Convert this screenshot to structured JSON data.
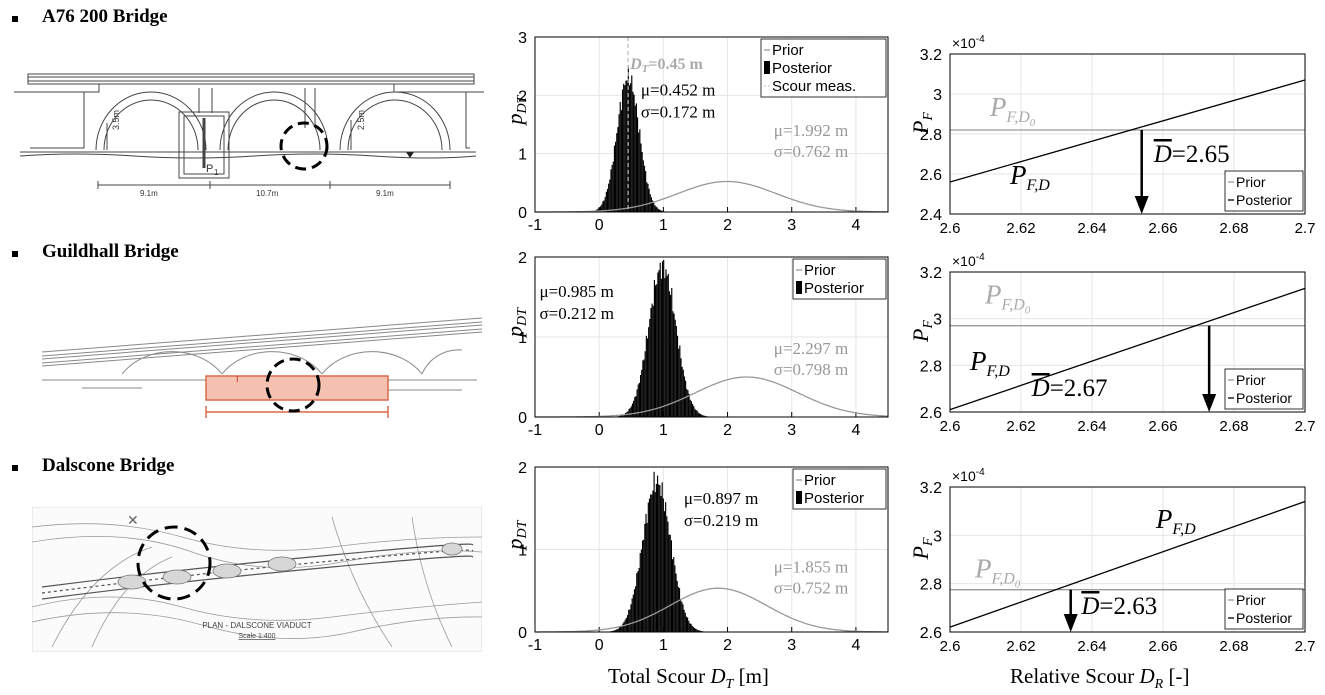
{
  "bridges": [
    {
      "title": "A76 200 Bridge"
    },
    {
      "title": "Guildhall Bridge"
    },
    {
      "title": "Dalscone Bridge"
    }
  ],
  "drawings": {
    "a76": {
      "labels": [
        "3.5m",
        "2.5m",
        "P",
        "1",
        "9.1m",
        "10.7m",
        "9.1m"
      ]
    },
    "dalscone": {
      "caption": "PLAN - DALSCONE VIADUCT",
      "scale": "Scale 1:400"
    }
  },
  "figure": {
    "xlabel_left_prefix": "Total Scour ",
    "xlabel_left_sym": "D",
    "xlabel_left_sub": "T",
    "xlabel_left_suffix": " [m]",
    "xlabel_right_prefix": "Relative Scour ",
    "xlabel_right_sym": "D",
    "xlabel_right_sub": "R",
    "xlabel_right_suffix": " [-]"
  },
  "colors": {
    "prior": "#999999",
    "posterior": "#000000",
    "grid": "#e6e6e6"
  },
  "chart_data": [
    {
      "type": "bar",
      "bridge": "A76 200 Bridge",
      "ylabel": "p",
      "ylabel_sub": "DT",
      "xlim": [
        -1,
        4.5
      ],
      "ylim": [
        0,
        3
      ],
      "xticks": [
        "-1",
        "0",
        "1",
        "2",
        "3",
        "4"
      ],
      "yticks": [
        "0",
        "1",
        "2",
        "3"
      ],
      "legend": [
        "Prior",
        "Posterior",
        "Scour meas."
      ],
      "legend_position": "top-right",
      "posterior": {
        "mean": 0.452,
        "std": 0.172,
        "label1": "μ=0.452 m",
        "label2": "σ=0.172 m"
      },
      "prior": {
        "mean": 1.992,
        "std": 0.762,
        "label1": "μ=1.992 m",
        "label2": "σ=0.762 m"
      },
      "scour_measurement": {
        "value": 0.45,
        "label": "D",
        "label_sub": "T",
        "label_rest": "=0.45 m"
      }
    },
    {
      "type": "line",
      "bridge": "A76 200 Bridge",
      "ylabel": "P",
      "ylabel_sub": "F",
      "exponent": "×10",
      "exponent_power": "-4",
      "xlim": [
        2.6,
        2.7
      ],
      "ylim": [
        2.4,
        3.2
      ],
      "xticks": [
        "2.6",
        "2.62",
        "2.64",
        "2.66",
        "2.68",
        "2.7"
      ],
      "yticks": [
        "2.4",
        "2.6",
        "2.8",
        "3",
        "3.2"
      ],
      "prior_value": 2.82,
      "posterior_line": {
        "x": [
          2.6,
          2.7
        ],
        "y": [
          2.56,
          3.07
        ]
      },
      "arrow_x": 2.654,
      "d_label": "=2.65",
      "prior_label": "P",
      "prior_label_sub": "F,D",
      "prior_label_subsub": "0",
      "post_label": "P",
      "post_label_sub": "F,D",
      "legend": [
        "Prior",
        "Posterior"
      ],
      "legend_position": "bottom-right"
    },
    {
      "type": "bar",
      "bridge": "Guildhall Bridge",
      "ylabel": "p",
      "ylabel_sub": "DT",
      "xlim": [
        -1,
        4.5
      ],
      "ylim": [
        0,
        2
      ],
      "xticks": [
        "-1",
        "0",
        "1",
        "2",
        "3",
        "4"
      ],
      "yticks": [
        "0",
        "1",
        "2"
      ],
      "legend": [
        "Prior",
        "Posterior"
      ],
      "legend_position": "top-right",
      "posterior": {
        "mean": 0.985,
        "std": 0.212,
        "label1": "μ=0.985 m",
        "label2": "σ=0.212 m"
      },
      "prior": {
        "mean": 2.297,
        "std": 0.798,
        "label1": "μ=2.297 m",
        "label2": "σ=0.798 m"
      }
    },
    {
      "type": "line",
      "bridge": "Guildhall Bridge",
      "ylabel": "P",
      "ylabel_sub": "F",
      "exponent": "×10",
      "exponent_power": "-4",
      "xlim": [
        2.6,
        2.7
      ],
      "ylim": [
        2.6,
        3.2
      ],
      "xticks": [
        "2.6",
        "2.62",
        "2.64",
        "2.66",
        "2.68",
        "2.7"
      ],
      "yticks": [
        "2.6",
        "2.8",
        "3",
        "3.2"
      ],
      "prior_value": 2.97,
      "posterior_line": {
        "x": [
          2.6,
          2.7
        ],
        "y": [
          2.61,
          3.13
        ]
      },
      "arrow_x": 2.673,
      "d_label": "=2.67",
      "prior_label": "P",
      "prior_label_sub": "F,D",
      "prior_label_subsub": "0",
      "post_label": "P",
      "post_label_sub": "F,D",
      "legend": [
        "Prior",
        "Posterior"
      ],
      "legend_position": "bottom-right"
    },
    {
      "type": "bar",
      "bridge": "Dalscone Bridge",
      "ylabel": "p",
      "ylabel_sub": "DT",
      "xlim": [
        -1,
        4.5
      ],
      "ylim": [
        0,
        2
      ],
      "xticks": [
        "-1",
        "0",
        "1",
        "2",
        "3",
        "4"
      ],
      "yticks": [
        "0",
        "1",
        "2"
      ],
      "legend": [
        "Prior",
        "Posterior"
      ],
      "legend_position": "top-right",
      "posterior": {
        "mean": 0.897,
        "std": 0.219,
        "label1": "μ=0.897 m",
        "label2": "σ=0.219 m"
      },
      "prior": {
        "mean": 1.855,
        "std": 0.752,
        "label1": "μ=1.855 m",
        "label2": "σ=0.752 m"
      }
    },
    {
      "type": "line",
      "bridge": "Dalscone Bridge",
      "ylabel": "P",
      "ylabel_sub": "F",
      "exponent": "×10",
      "exponent_power": "-4",
      "xlim": [
        2.6,
        2.7
      ],
      "ylim": [
        2.6,
        3.2
      ],
      "xticks": [
        "2.6",
        "2.62",
        "2.64",
        "2.66",
        "2.68",
        "2.7"
      ],
      "yticks": [
        "2.6",
        "2.8",
        "3",
        "3.2"
      ],
      "prior_value": 2.775,
      "posterior_line": {
        "x": [
          2.6,
          2.7
        ],
        "y": [
          2.62,
          3.14
        ]
      },
      "arrow_x": 2.634,
      "d_label": "=2.63",
      "prior_label": "P",
      "prior_label_sub": "F,D",
      "prior_label_subsub": "0",
      "post_label": "P",
      "post_label_sub": "F,D",
      "legend": [
        "Prior",
        "Posterior"
      ],
      "legend_position": "bottom-right"
    }
  ]
}
